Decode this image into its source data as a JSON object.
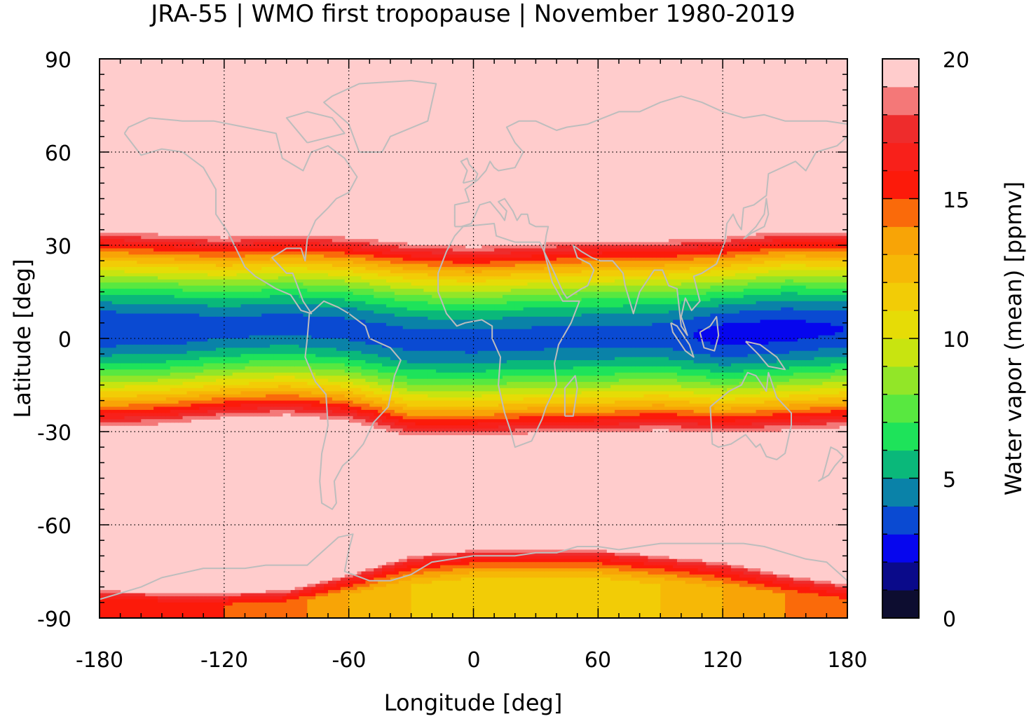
{
  "chart_data": {
    "type": "heatmap",
    "title": "JRA-55 | WMO first tropopause | November 1980-2019",
    "xlabel": "Longitude [deg]",
    "ylabel": "Latitude [deg]",
    "xlim": [
      -180,
      180
    ],
    "ylim": [
      -90,
      90
    ],
    "xticks": [
      "-180",
      "-120",
      "-60",
      "0",
      "60",
      "120",
      "180"
    ],
    "yticks": [
      "90",
      "60",
      "30",
      "0",
      "-30",
      "-60",
      "-90"
    ],
    "grid": true,
    "colorbar": {
      "label": "Water vapor (mean) [ppmv]",
      "range": [
        0,
        20
      ],
      "ticks": [
        "0",
        "5",
        "10",
        "15",
        "20"
      ],
      "levels": [
        0,
        1,
        2,
        3,
        4,
        5,
        6,
        7,
        8,
        9,
        10,
        11,
        12,
        13,
        14,
        15,
        16,
        17,
        18,
        19,
        20
      ],
      "colors": [
        "#0d0d30",
        "#0a0a8a",
        "#0606ee",
        "#0a4ad2",
        "#0a82a8",
        "#0ab87a",
        "#1ee35a",
        "#58e840",
        "#92e628",
        "#c8e410",
        "#e6dc06",
        "#f2cc06",
        "#f6b806",
        "#f8a406",
        "#fa6a0a",
        "#fc1a0a",
        "#f8201a",
        "#ee2c2c",
        "#f47878",
        "#ffcccc"
      ]
    },
    "series": [
      {
        "quantity": "northern tropical boundary latitude (>=19 ppmv), by longitude",
        "x": [
          -180,
          -150,
          -120,
          -90,
          -60,
          -30,
          0,
          30,
          60,
          90,
          120,
          150,
          180
        ],
        "values": [
          35,
          34,
          33,
          34,
          33,
          31,
          30,
          31,
          32,
          32,
          33,
          35,
          35
        ]
      },
      {
        "quantity": "southern tropical boundary latitude (>=19 ppmv), by longitude",
        "x": [
          -180,
          -150,
          -120,
          -90,
          -60,
          -30,
          0,
          30,
          60,
          90,
          120,
          150,
          180
        ],
        "values": [
          -29,
          -28,
          -26,
          -25,
          -27,
          -32,
          -32,
          -31,
          -31,
          -30,
          -31,
          -30,
          -29
        ]
      },
      {
        "quantity": "Antarctic low-vapor boundary latitude (>=19 ppmv), by longitude",
        "x": [
          -180,
          -150,
          -120,
          -90,
          -60,
          -30,
          0,
          30,
          60,
          90,
          120,
          150,
          180
        ],
        "values": [
          -81,
          -82,
          -82,
          -81,
          -76,
          -70,
          -68,
          -68,
          -68,
          -70,
          -72,
          -76,
          -79
        ]
      },
      {
        "quantity": "Antarctic minimum water vapor [ppmv], by longitude",
        "x": [
          -180,
          -150,
          -120,
          -90,
          -60,
          -30,
          0,
          30,
          60,
          90,
          120,
          150,
          180
        ],
        "values": [
          15,
          15,
          15,
          14.5,
          13,
          12,
          11.5,
          11.5,
          11.5,
          12,
          13,
          14,
          15
        ]
      },
      {
        "quantity": "equatorial minimum water vapor [ppmv], by longitude",
        "x": [
          -180,
          -150,
          -120,
          -90,
          -60,
          -30,
          0,
          30,
          60,
          90,
          120,
          150,
          180
        ],
        "values": [
          3,
          3,
          3.5,
          3.5,
          3.5,
          3.5,
          3.5,
          3.5,
          3.5,
          3.5,
          2.5,
          2.5,
          3
        ]
      }
    ],
    "overlay": "coastlines"
  }
}
